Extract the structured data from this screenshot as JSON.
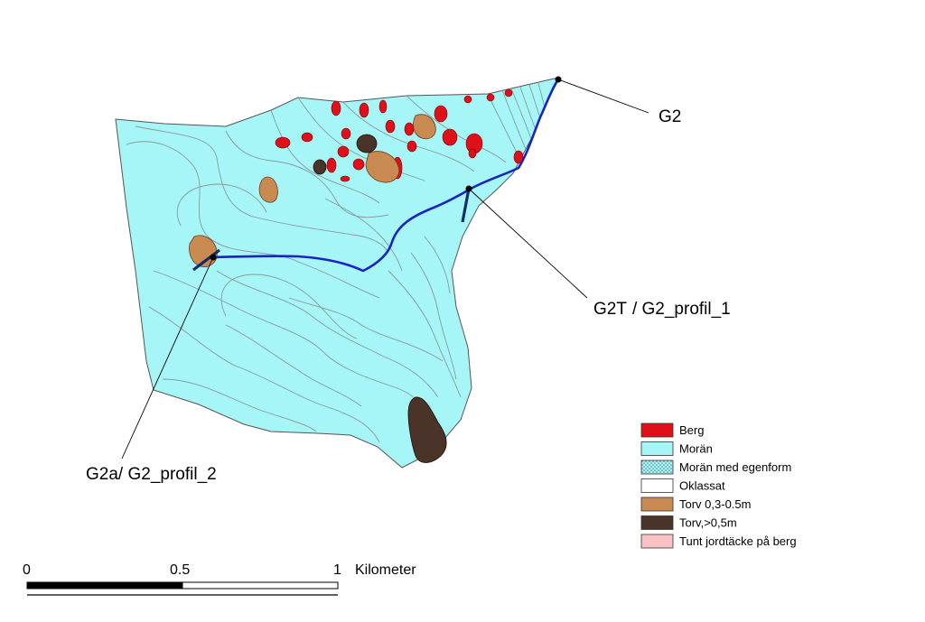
{
  "colors": {
    "berg": "#e0101a",
    "moran": "#a6f5f7",
    "moran_egenform": "#a6f5f7",
    "oklassat": "#ffffff",
    "torv_thin": "#c98a52",
    "torv_thick": "#4a3328",
    "tunt_jordtacke": "#f9c3c3",
    "stream": "#1a24c0",
    "profile": "#142a6e",
    "contour": "#8a9a9a",
    "outline": "#555555"
  },
  "points": {
    "g2": "G2",
    "g2t": "G2T",
    "g2t_profile": "/ G2_profil_1",
    "g2a": "G2a",
    "g2a_profile": "/ G2_profil_2"
  },
  "legend": {
    "items": [
      {
        "label": "Berg",
        "color_key": "berg"
      },
      {
        "label": "Morän",
        "color_key": "moran"
      },
      {
        "label": "Morän med egenform",
        "color_key": "moran_egenform"
      },
      {
        "label": "Oklassat",
        "color_key": "oklassat"
      },
      {
        "label": "Torv  0,3-0.5m",
        "color_key": "torv_thin"
      },
      {
        "label": "Torv,>0,5m",
        "color_key": "torv_thick"
      },
      {
        "label": "Tunt jordtäcke på berg",
        "color_key": "tunt_jordtacke"
      }
    ]
  },
  "scalebar": {
    "ticks": [
      "0",
      "0.5",
      "1"
    ],
    "unit": "Kilometer"
  }
}
